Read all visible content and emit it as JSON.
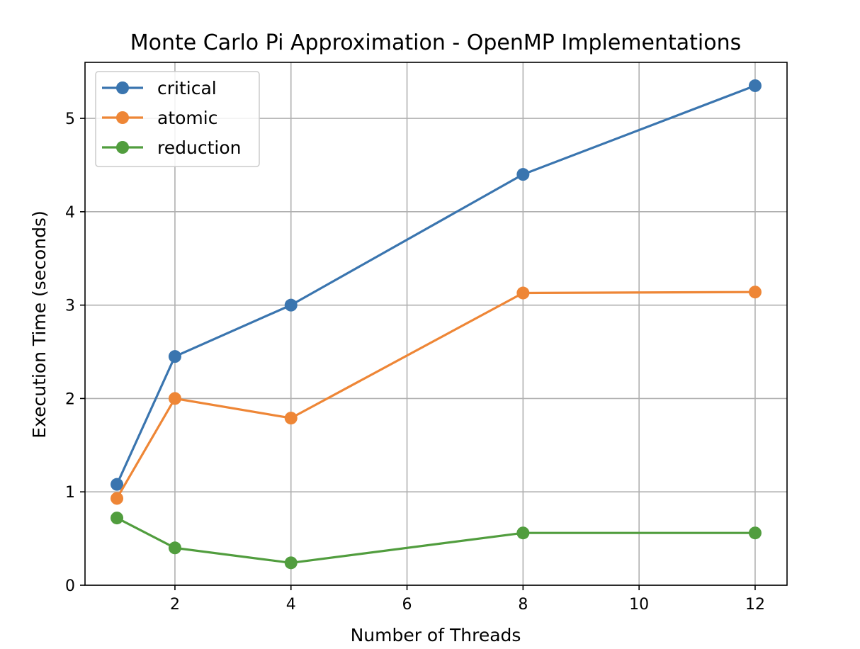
{
  "chart_data": {
    "type": "line",
    "title": "Monte Carlo Pi Approximation - OpenMP Implementations",
    "xlabel": "Number of Threads",
    "ylabel": "Execution Time (seconds)",
    "x": [
      1,
      2,
      4,
      8,
      12
    ],
    "xlim": [
      0.45,
      12.55
    ],
    "ylim": [
      0,
      5.6
    ],
    "xticks": [
      2,
      4,
      6,
      8,
      10,
      12
    ],
    "yticks": [
      0,
      1,
      2,
      3,
      4,
      5
    ],
    "grid": true,
    "legend_position": "top-left",
    "series": [
      {
        "name": "critical",
        "color": "#3a75af",
        "values": [
          1.08,
          2.45,
          3.0,
          4.4,
          5.35
        ]
      },
      {
        "name": "atomic",
        "color": "#ee8636",
        "values": [
          0.93,
          2.0,
          1.79,
          3.13,
          3.14
        ]
      },
      {
        "name": "reduction",
        "color": "#519d3e",
        "values": [
          0.72,
          0.4,
          0.24,
          0.56,
          0.56
        ]
      }
    ]
  }
}
